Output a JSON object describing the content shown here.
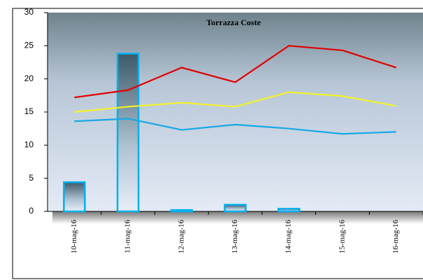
{
  "chart_data": {
    "type": "combo",
    "title": "Torrazza Coste",
    "categories": [
      "10-mag-16",
      "11-mag-16",
      "12-mag-16",
      "13-mag-16",
      "14-mag-16",
      "15-mag-16",
      "16-mag-16"
    ],
    "series": [
      {
        "type": "bar",
        "color": "#00b0f0",
        "values": [
          4.4,
          23.8,
          0.2,
          1.0,
          0.4,
          0,
          0
        ]
      },
      {
        "type": "line",
        "color": "#e00000",
        "values": [
          17.2,
          18.3,
          21.7,
          19.5,
          25,
          24.3,
          21.7
        ]
      },
      {
        "type": "line",
        "color": "#f2f22a",
        "values": [
          15,
          15.8,
          16.4,
          15.8,
          18,
          17.4,
          15.9
        ]
      },
      {
        "type": "line",
        "color": "#17a8e6",
        "values": [
          13.6,
          14,
          12.3,
          13.1,
          12.5,
          11.7,
          12
        ]
      }
    ],
    "ylim": [
      0,
      30
    ],
    "yticks": [
      0,
      5,
      10,
      15,
      20,
      25,
      30
    ]
  }
}
